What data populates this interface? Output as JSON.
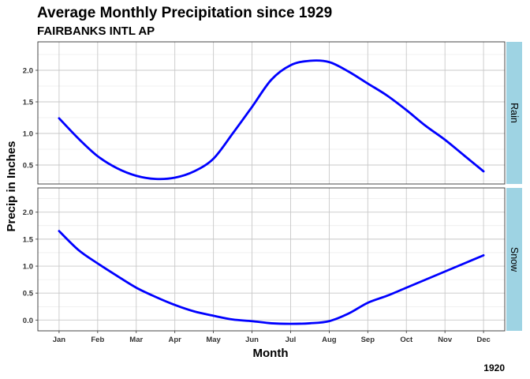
{
  "chart_data": {
    "type": "line",
    "title": "Average Monthly Precipitation since 1929",
    "subtitle": "FAIRBANKS INTL AP",
    "xlabel": "Month",
    "ylabel": "Precip in Inches",
    "caption": "1920",
    "categories": [
      "Jan",
      "Feb",
      "Mar",
      "Apr",
      "May",
      "Jun",
      "Jul",
      "Aug",
      "Sep",
      "Oct",
      "Nov",
      "Dec"
    ],
    "line_color": "#0000ff",
    "strip_color": "#9ed3e3",
    "grid": true,
    "panels": [
      {
        "name": "Rain",
        "ylim": [
          0.2,
          2.45
        ],
        "y_ticks": [
          0.5,
          1.0,
          1.5,
          2.0
        ],
        "y_tick_labels": [
          "0.5",
          "1.0",
          "1.5",
          "2.0"
        ],
        "points": [
          [
            1,
            1.24
          ],
          [
            1.5,
            0.92
          ],
          [
            2,
            0.64
          ],
          [
            2.5,
            0.45
          ],
          [
            3,
            0.33
          ],
          [
            3.5,
            0.28
          ],
          [
            4,
            0.3
          ],
          [
            4.5,
            0.4
          ],
          [
            5,
            0.6
          ],
          [
            5.5,
            1.0
          ],
          [
            6,
            1.42
          ],
          [
            6.5,
            1.85
          ],
          [
            7,
            2.08
          ],
          [
            7.5,
            2.15
          ],
          [
            8,
            2.13
          ],
          [
            8.5,
            1.98
          ],
          [
            9,
            1.79
          ],
          [
            9.5,
            1.6
          ],
          [
            10,
            1.37
          ],
          [
            10.5,
            1.12
          ],
          [
            11,
            0.9
          ],
          [
            11.5,
            0.65
          ],
          [
            12,
            0.4
          ]
        ]
      },
      {
        "name": "Snow",
        "ylim": [
          -0.2,
          2.45
        ],
        "y_ticks": [
          0.0,
          0.5,
          1.0,
          1.5,
          2.0
        ],
        "y_tick_labels": [
          "0.0",
          "0.5",
          "1.0",
          "1.5",
          "2.0"
        ],
        "points": [
          [
            1,
            1.65
          ],
          [
            1.5,
            1.3
          ],
          [
            2,
            1.05
          ],
          [
            2.5,
            0.82
          ],
          [
            3,
            0.6
          ],
          [
            3.5,
            0.43
          ],
          [
            4,
            0.28
          ],
          [
            4.5,
            0.16
          ],
          [
            5,
            0.08
          ],
          [
            5.5,
            0.01
          ],
          [
            6,
            -0.02
          ],
          [
            6.5,
            -0.06
          ],
          [
            7,
            -0.07
          ],
          [
            7.5,
            -0.06
          ],
          [
            8,
            -0.02
          ],
          [
            8.5,
            0.12
          ],
          [
            9,
            0.32
          ],
          [
            9.5,
            0.45
          ],
          [
            10,
            0.6
          ],
          [
            10.5,
            0.75
          ],
          [
            11,
            0.9
          ],
          [
            11.5,
            1.05
          ],
          [
            12,
            1.2
          ]
        ]
      }
    ]
  }
}
